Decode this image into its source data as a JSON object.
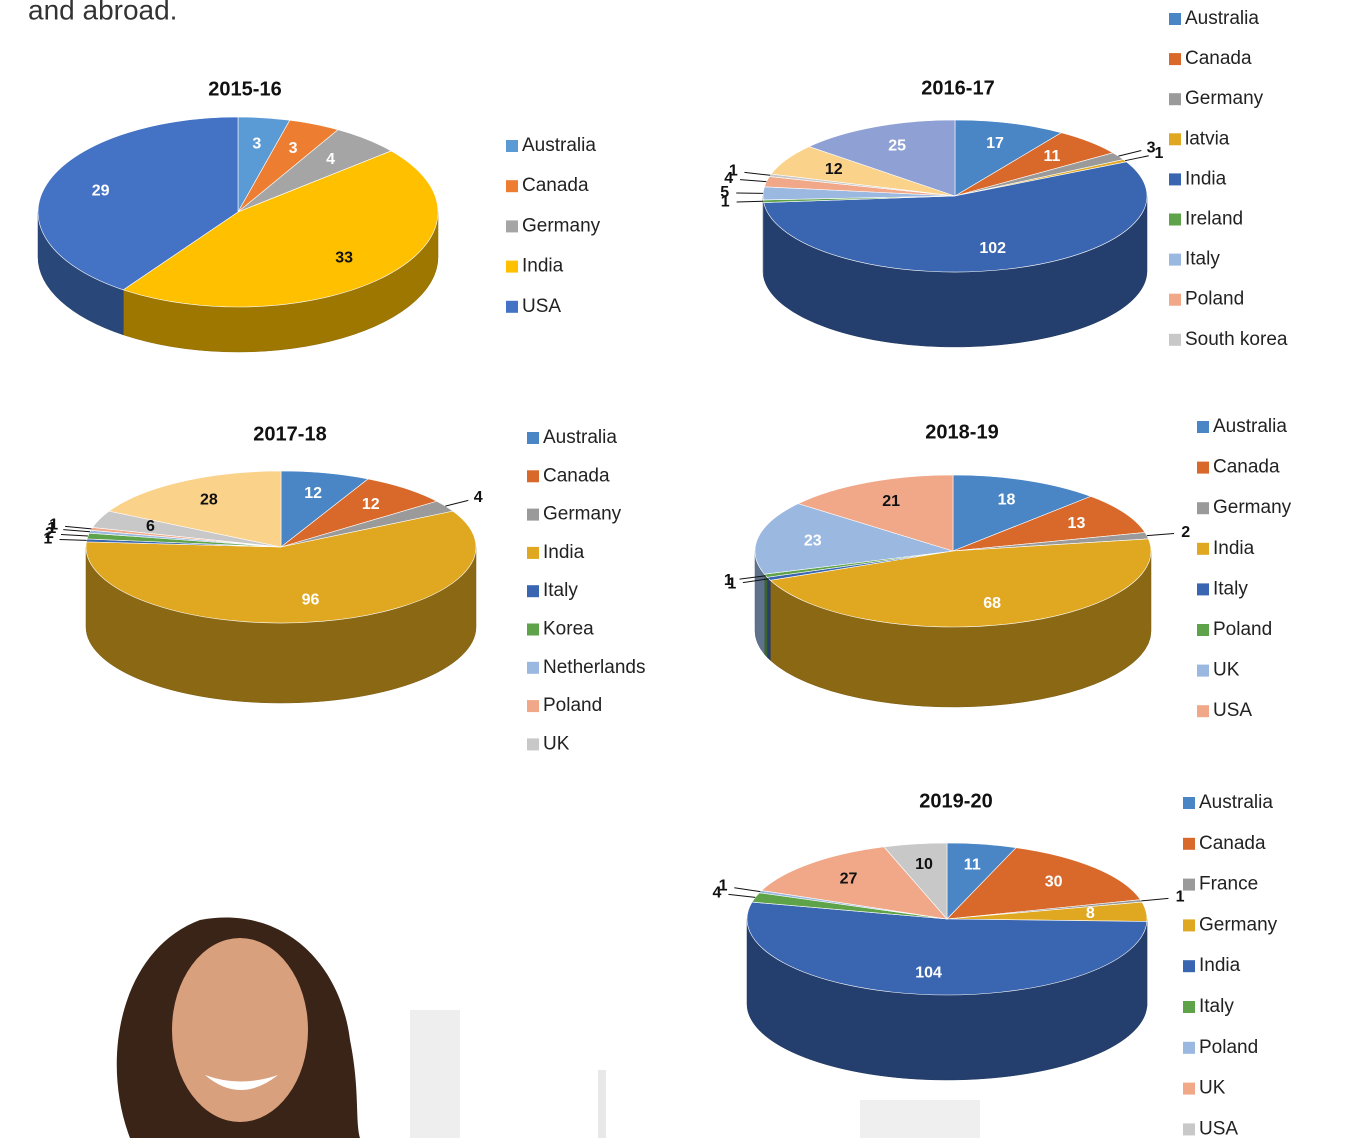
{
  "header": {
    "text": "and abroad."
  },
  "chart_data": [
    {
      "type": "pie",
      "title": "2015-16",
      "categories": [
        "Australia",
        "Canada",
        "Germany",
        "India",
        "USA"
      ],
      "values": [
        3,
        3,
        4,
        33,
        29
      ],
      "colors": [
        "#5b9bd5",
        "#ed7d31",
        "#a5a5a5",
        "#ffc000",
        "#4472c4"
      ]
    },
    {
      "type": "pie",
      "title": "2016-17",
      "categories": [
        "Australia",
        "Canada",
        "Germany",
        "latvia",
        "India",
        "Ireland",
        "Italy",
        "Poland",
        "South korea",
        null,
        null
      ],
      "values": [
        17,
        11,
        3,
        1,
        102,
        1,
        5,
        4,
        1,
        12,
        25
      ],
      "colors": [
        "#4a86c5",
        "#d9692a",
        "#9a9a9a",
        "#e0a820",
        "#3a65b0",
        "#5ea34a",
        "#9ab8e0",
        "#f0a888",
        "#c8c8c8",
        "#fad28a",
        "#8fa0d4"
      ]
    },
    {
      "type": "pie",
      "title": "2017-18",
      "categories": [
        "Australia",
        "Canada",
        "Germany",
        "India",
        "Italy",
        "Korea",
        "Netherlands",
        "Poland",
        "UK",
        null
      ],
      "values": [
        12,
        12,
        4,
        96,
        1,
        2,
        1,
        1,
        6,
        28
      ],
      "colors": [
        "#4a86c5",
        "#d9692a",
        "#9a9a9a",
        "#e0a820",
        "#3a65b0",
        "#5ea34a",
        "#9ab8e0",
        "#f0a888",
        "#c8c8c8",
        "#fad28a"
      ]
    },
    {
      "type": "pie",
      "title": "2018-19",
      "categories": [
        "Australia",
        "Canada",
        "Germany",
        "India",
        "Italy",
        "Poland",
        "UK",
        "USA"
      ],
      "values": [
        18,
        13,
        2,
        68,
        1,
        1,
        23,
        21
      ],
      "colors": [
        "#4a86c5",
        "#d9692a",
        "#9a9a9a",
        "#e0a820",
        "#3a65b0",
        "#5ea34a",
        "#9ab8e0",
        "#f0a888"
      ]
    },
    {
      "type": "pie",
      "title": "2019-20",
      "categories": [
        "Australia",
        "Canada",
        "France",
        "Germany",
        "India",
        "Italy",
        "Poland",
        "UK",
        "USA"
      ],
      "values": [
        11,
        30,
        1,
        8,
        104,
        4,
        1,
        27,
        10
      ],
      "colors": [
        "#4a86c5",
        "#d9692a",
        "#9a9a9a",
        "#e0a820",
        "#3a65b0",
        "#5ea34a",
        "#9ab8e0",
        "#f0a888",
        "#c8c8c8"
      ]
    }
  ]
}
